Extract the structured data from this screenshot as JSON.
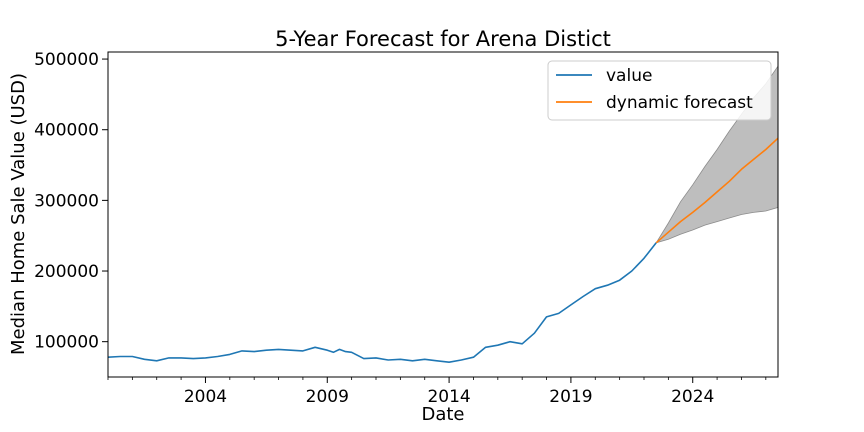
{
  "chart_data": {
    "type": "line",
    "title": "5-Year Forecast for Arena Distict",
    "xlabel": "Date",
    "ylabel": "Median Home Sale Value (USD)",
    "xlim": [
      2000.0,
      2027.5
    ],
    "ylim": [
      50000,
      510000
    ],
    "x_ticks": [
      2004,
      2009,
      2014,
      2019,
      2024
    ],
    "x_tick_labels": [
      "2004",
      "2009",
      "2014",
      "2019",
      "2024"
    ],
    "y_ticks": [
      100000,
      200000,
      300000,
      400000,
      500000
    ],
    "y_tick_labels": [
      "100000",
      "200000",
      "300000",
      "400000",
      "500000"
    ],
    "legend": {
      "position": "top-right",
      "entries": [
        {
          "label": "value",
          "color": "#1f77b4"
        },
        {
          "label": "dynamic forecast",
          "color": "#ff7f0e"
        }
      ]
    },
    "series": [
      {
        "name": "value",
        "color": "#1f77b4",
        "x": [
          2000.0,
          2000.5,
          2001.0,
          2001.5,
          2002.0,
          2002.5,
          2003.0,
          2003.5,
          2004.0,
          2004.5,
          2005.0,
          2005.5,
          2006.0,
          2006.5,
          2007.0,
          2007.5,
          2008.0,
          2008.5,
          2009.0,
          2009.25,
          2009.5,
          2009.75,
          2010.0,
          2010.5,
          2011.0,
          2011.5,
          2012.0,
          2012.5,
          2013.0,
          2013.5,
          2014.0,
          2014.5,
          2015.0,
          2015.5,
          2016.0,
          2016.5,
          2017.0,
          2017.5,
          2018.0,
          2018.5,
          2019.0,
          2019.5,
          2020.0,
          2020.5,
          2021.0,
          2021.5,
          2022.0,
          2022.5
        ],
        "y": [
          78000,
          79000,
          79000,
          75000,
          73000,
          77000,
          77000,
          76000,
          77000,
          79000,
          82000,
          87000,
          86000,
          88000,
          89000,
          88000,
          87000,
          92000,
          88000,
          85000,
          89000,
          86000,
          85000,
          76000,
          77000,
          74000,
          75000,
          73000,
          75000,
          73000,
          71000,
          74000,
          78000,
          92000,
          95000,
          100000,
          97000,
          112000,
          135000,
          140000,
          152000,
          164000,
          175000,
          180000,
          187000,
          200000,
          218000,
          240000
        ]
      },
      {
        "name": "dynamic forecast",
        "color": "#ff7f0e",
        "x": [
          2022.5,
          2023.0,
          2023.5,
          2024.0,
          2024.5,
          2025.0,
          2025.5,
          2026.0,
          2026.5,
          2027.0,
          2027.5
        ],
        "y": [
          240000,
          255000,
          270000,
          283000,
          297000,
          312000,
          327000,
          344000,
          358000,
          372000,
          388000
        ]
      }
    ],
    "confidence_band": {
      "color": "#bebebe",
      "x": [
        2022.5,
        2023.0,
        2023.5,
        2024.0,
        2024.5,
        2025.0,
        2025.5,
        2026.0,
        2026.5,
        2027.0,
        2027.5
      ],
      "lower": [
        240000,
        245000,
        252000,
        258000,
        265000,
        270000,
        275000,
        280000,
        283000,
        285000,
        290000
      ],
      "upper": [
        240000,
        268000,
        298000,
        322000,
        348000,
        372000,
        398000,
        422000,
        445000,
        465000,
        490000
      ]
    }
  }
}
